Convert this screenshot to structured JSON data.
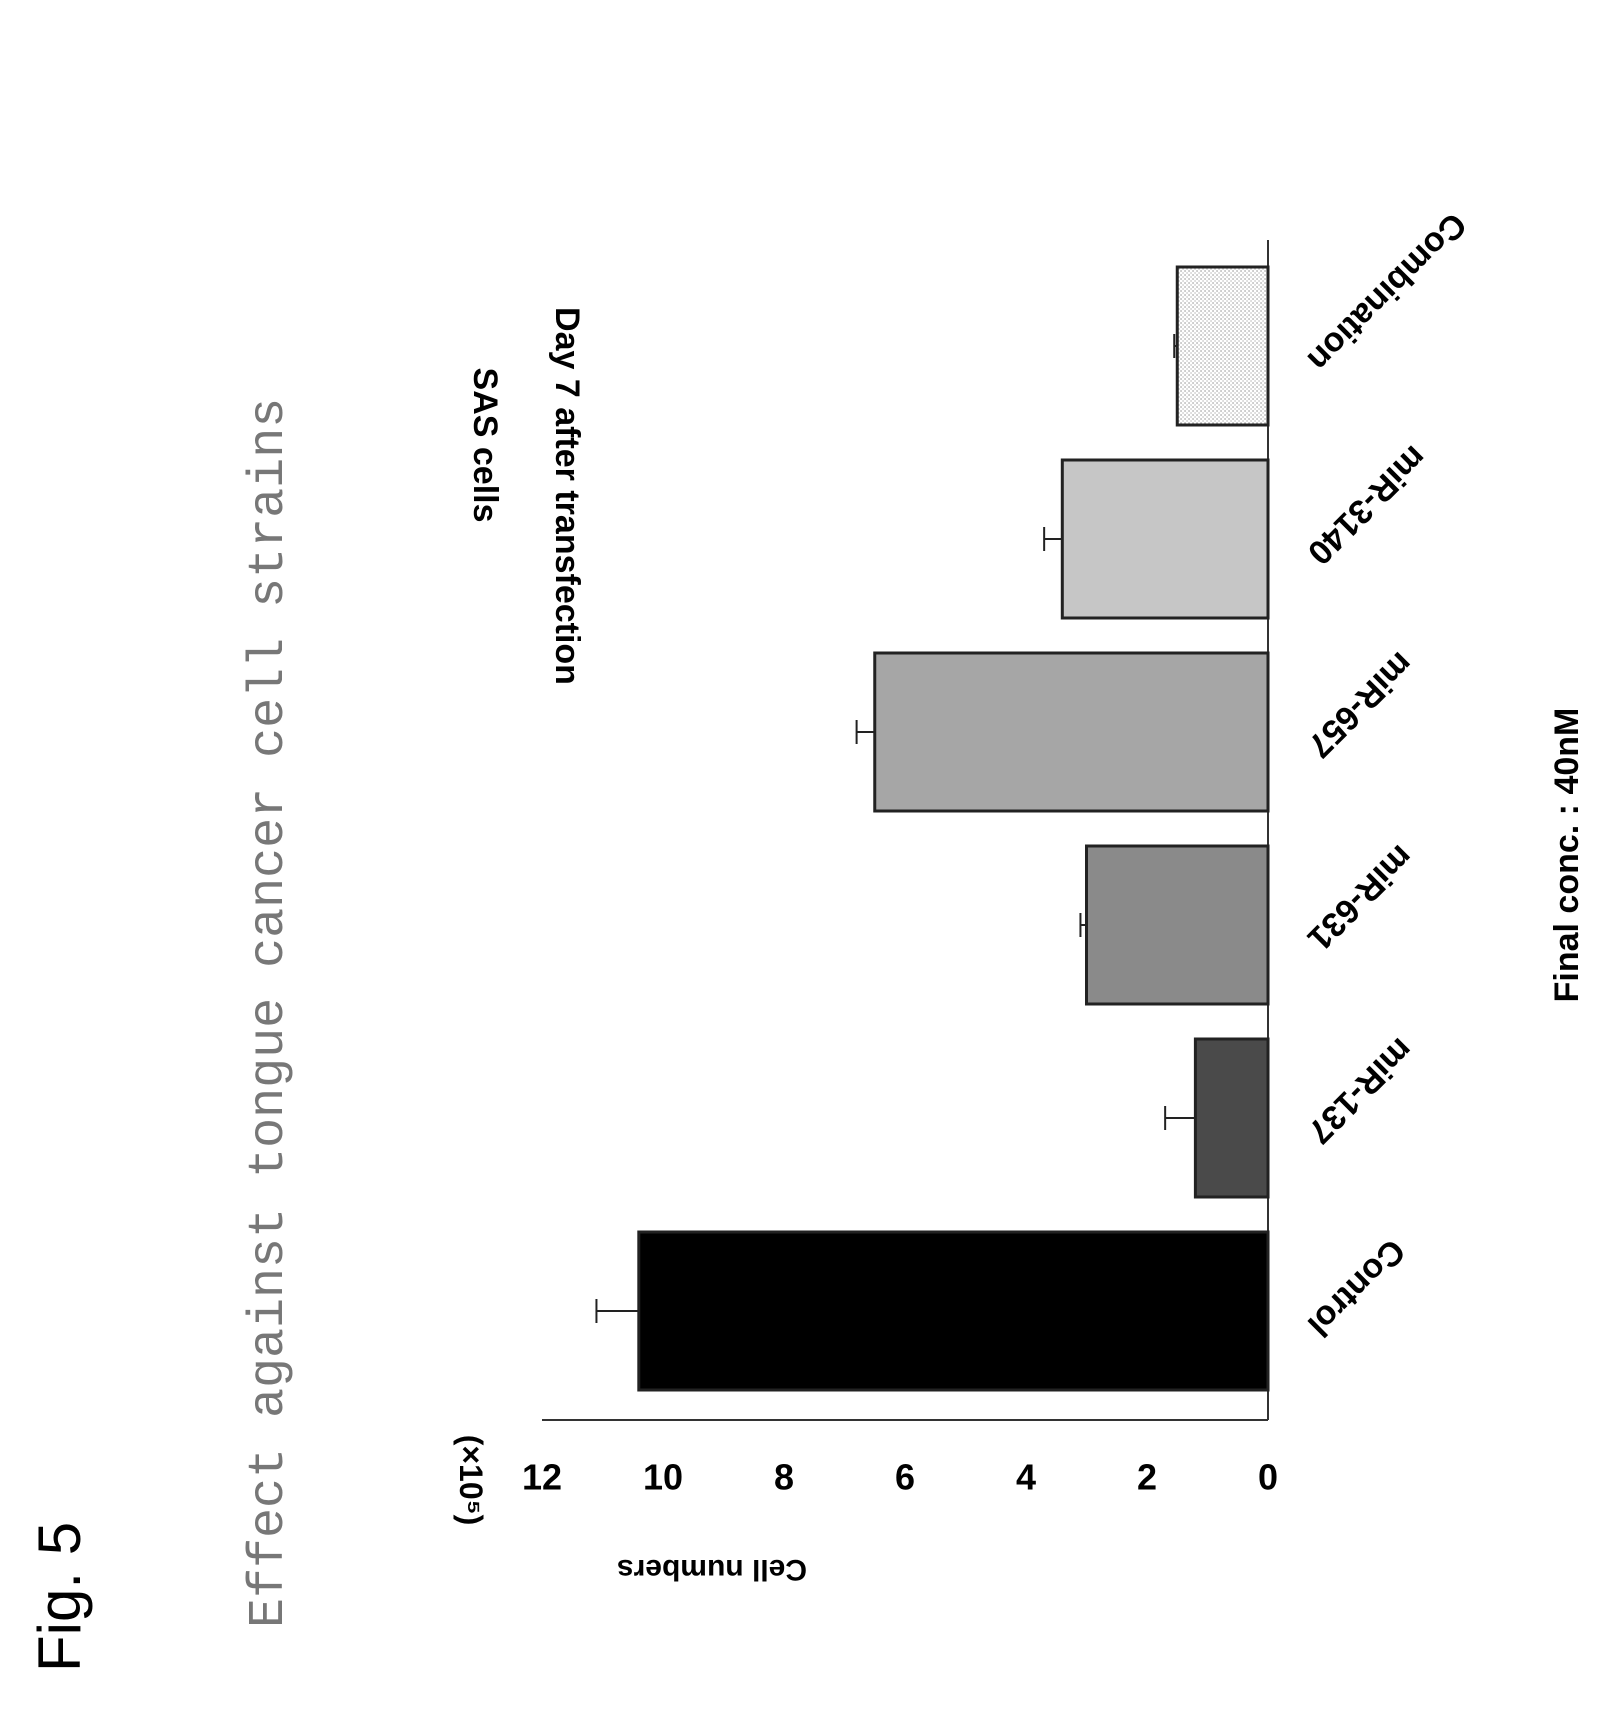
{
  "figure_label": "Fig. 5",
  "figure_title": "Effect against tongue cancer cell strains",
  "chart_data": {
    "type": "bar",
    "title": "SAS cells",
    "subtitle": "Day 7 after transfection",
    "ylabel": "Cell numbers",
    "yunit": "(×10⁵)",
    "xlabel": "",
    "ylim": [
      0,
      12
    ],
    "yticks": [
      0,
      2,
      4,
      6,
      8,
      10,
      12
    ],
    "categories": [
      "Control",
      "miR-137",
      "miR-631",
      "miR-657",
      "miR-3140",
      "Combination"
    ],
    "values": [
      10.4,
      1.2,
      3.0,
      6.5,
      3.4,
      1.5
    ],
    "errors": [
      0.7,
      0.5,
      0.1,
      0.3,
      0.3,
      0.05
    ],
    "bar_colors": [
      "#000000",
      "#4a4a4a",
      "#8a8a8a",
      "#a6a6a6",
      "#c6c6c6",
      "#e0e0e0"
    ],
    "annotation": "Final conc. : 40nM",
    "grid": false,
    "orientation": "rotated 90° clockwise"
  }
}
